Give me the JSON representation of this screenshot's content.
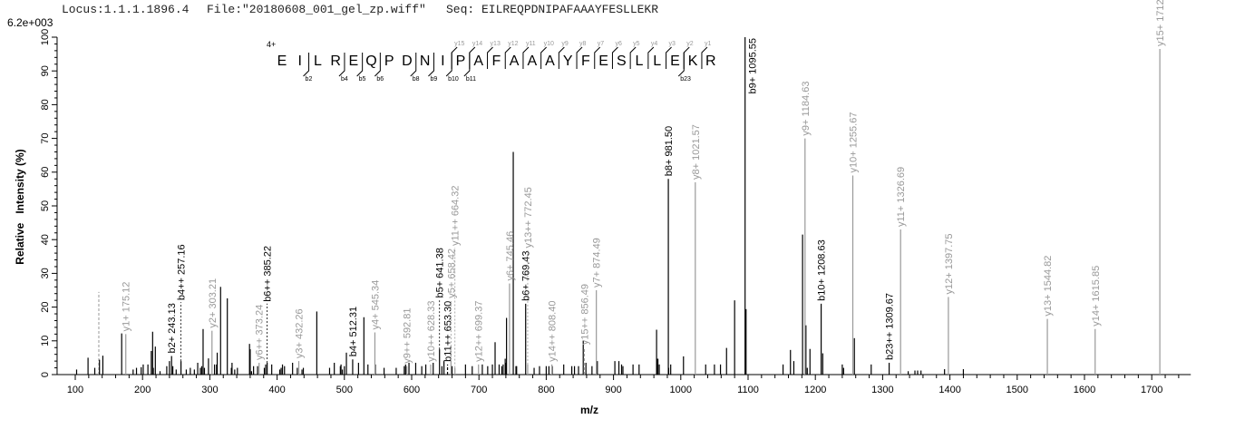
{
  "header": {
    "locus": "Locus:1.1.1.1896.4",
    "file": "File:\"20180608_001_gel_zp.wiff\"",
    "seq": "Seq: EILREQPDNIPAFAAAYFESLLEKR",
    "scale": "6.2e+003"
  },
  "chart_data": {
    "type": "bar",
    "subtype": "mass spectrum (stick)",
    "xlabel": "m/z",
    "ylabel": "Relative   Intensity (%)",
    "xlim": [
      73,
      1758
    ],
    "ylim": [
      0,
      100
    ],
    "xticks": [
      100,
      200,
      300,
      400,
      500,
      600,
      700,
      800,
      900,
      1000,
      1100,
      1200,
      1300,
      1400,
      1500,
      1600,
      1700
    ],
    "yticks": [
      0,
      10,
      20,
      30,
      40,
      50,
      60,
      70,
      80,
      90,
      100
    ],
    "grid": false,
    "colors": {
      "b_ion": "#000000",
      "y_ion": "#999999",
      "unassigned": "#000000"
    },
    "sequence": {
      "peptide": "EILREQPDNIPAFAAAYFESLLEKR",
      "charge": "4+",
      "b_ions": [
        2,
        4,
        5,
        6,
        8,
        9,
        10,
        11,
        23
      ],
      "y_ions": [
        15,
        14,
        13,
        12,
        11,
        10,
        9,
        8,
        7,
        6,
        5,
        4,
        3,
        2,
        1
      ]
    },
    "annotated_peaks": [
      {
        "mz": 175.12,
        "intensity": 12,
        "label": "y1+ 175.12",
        "type": "y"
      },
      {
        "mz": 243.13,
        "intensity": 5.5,
        "label": "b2+ 243.13",
        "type": "b"
      },
      {
        "mz": 257.16,
        "intensity": 4,
        "label": "b4++ 257.16",
        "type": "b"
      },
      {
        "mz": 303.21,
        "intensity": 13,
        "label": "y2+ 303.21",
        "type": "y"
      },
      {
        "mz": 373.24,
        "intensity": 3.5,
        "label": "y6++ 373.24",
        "type": "y"
      },
      {
        "mz": 385.22,
        "intensity": 3.5,
        "label": "b6++ 385.22",
        "type": "b"
      },
      {
        "mz": 432.26,
        "intensity": 4,
        "label": "y3+ 432.26",
        "type": "y"
      },
      {
        "mz": 512.31,
        "intensity": 4.5,
        "label": "b4+ 512.31",
        "type": "b"
      },
      {
        "mz": 545.34,
        "intensity": 12.5,
        "label": "y4+ 545.34",
        "type": "y"
      },
      {
        "mz": 592.81,
        "intensity": 2.5,
        "label": "y9++ 592.81",
        "type": "y"
      },
      {
        "mz": 628.33,
        "intensity": 3,
        "label": "y10++ 628.33",
        "type": "y"
      },
      {
        "mz": 641.38,
        "intensity": 7.5,
        "label": "b5+ 641.38",
        "type": "b"
      },
      {
        "mz": 653.3,
        "intensity": 3,
        "label": "b11++ 653.30",
        "type": "b",
        "dashed": true
      },
      {
        "mz": 658.42,
        "intensity": 4,
        "label": "y5+ 658.42",
        "type": "y"
      },
      {
        "mz": 664.32,
        "intensity": 2,
        "label": "y11++ 664.32",
        "type": "y"
      },
      {
        "mz": 699.37,
        "intensity": 3,
        "label": "y12++ 699.37",
        "type": "y"
      },
      {
        "mz": 745.46,
        "intensity": 27,
        "label": "y6+ 745.46",
        "type": "y"
      },
      {
        "mz": 769.43,
        "intensity": 21,
        "label": "b6+ 769.43",
        "type": "b"
      },
      {
        "mz": 772.45,
        "intensity": 3,
        "label": "y13++ 772.45",
        "type": "y"
      },
      {
        "mz": 808.4,
        "intensity": 3,
        "label": "y14++ 808.40",
        "type": "y"
      },
      {
        "mz": 856.49,
        "intensity": 8,
        "label": "y15++ 856.49",
        "type": "y",
        "dashed": true
      },
      {
        "mz": 874.49,
        "intensity": 25,
        "label": "y7+ 874.49",
        "type": "y"
      },
      {
        "mz": 981.5,
        "intensity": 58,
        "label": "b8+ 981.50",
        "type": "b"
      },
      {
        "mz": 1021.57,
        "intensity": 57,
        "label": "y8+ 1021.57",
        "type": "y"
      },
      {
        "mz": 1095.55,
        "intensity": 100,
        "label": "b9+ 1095.55",
        "type": "b"
      },
      {
        "mz": 1184.63,
        "intensity": 70,
        "label": "y9+ 1184.63",
        "type": "y"
      },
      {
        "mz": 1208.63,
        "intensity": 21,
        "label": "b10+ 1208.63",
        "type": "b"
      },
      {
        "mz": 1255.67,
        "intensity": 59,
        "label": "y10+ 1255.67",
        "type": "y"
      },
      {
        "mz": 1309.67,
        "intensity": 3.5,
        "label": "b23++ 1309.67",
        "type": "b"
      },
      {
        "mz": 1326.69,
        "intensity": 43,
        "label": "y11+ 1326.69",
        "type": "y"
      },
      {
        "mz": 1397.75,
        "intensity": 23,
        "label": "y12+ 1397.75",
        "type": "y"
      },
      {
        "mz": 1544.82,
        "intensity": 16.5,
        "label": "y13+ 1544.82",
        "type": "y"
      },
      {
        "mz": 1615.85,
        "intensity": 13.5,
        "label": "y14+ 1615.85",
        "type": "y"
      },
      {
        "mz": 1712.0,
        "intensity": 96.5,
        "label": "y15+ 1712.",
        "type": "y"
      }
    ],
    "unassigned_peaks": [
      [
        102,
        1.5
      ],
      [
        119,
        5
      ],
      [
        129,
        2
      ],
      [
        135,
        24.5,
        "dashed"
      ],
      [
        136,
        4.4
      ],
      [
        141,
        5.6
      ],
      [
        169,
        12.2
      ],
      [
        186,
        1.5
      ],
      [
        191,
        2
      ],
      [
        198,
        2.2
      ],
      [
        201,
        3
      ],
      [
        208,
        3
      ],
      [
        213,
        7
      ],
      [
        215,
        12.7
      ],
      [
        216,
        2
      ],
      [
        219,
        8.3
      ],
      [
        226,
        1
      ],
      [
        236,
        2.5
      ],
      [
        240,
        4
      ],
      [
        245,
        2.5
      ],
      [
        250,
        1.5
      ],
      [
        265,
        1.5
      ],
      [
        271,
        2
      ],
      [
        277,
        1.5
      ],
      [
        282,
        3.5
      ],
      [
        286,
        2
      ],
      [
        288,
        2.5
      ],
      [
        290,
        13.5
      ],
      [
        292,
        2
      ],
      [
        298,
        4.8
      ],
      [
        307,
        3
      ],
      [
        310,
        3
      ],
      [
        311,
        6.5
      ],
      [
        316,
        26
      ],
      [
        326,
        22.6
      ],
      [
        332,
        2
      ],
      [
        333,
        3.5
      ],
      [
        337,
        1.5
      ],
      [
        341,
        2
      ],
      [
        359,
        9.1
      ],
      [
        360,
        7.5
      ],
      [
        362,
        1
      ],
      [
        365,
        2.5
      ],
      [
        371,
        2.5
      ],
      [
        381,
        2
      ],
      [
        383,
        3
      ],
      [
        392,
        3
      ],
      [
        404,
        1.5
      ],
      [
        406,
        2
      ],
      [
        408,
        3
      ],
      [
        411,
        2.5
      ],
      [
        423,
        3.5
      ],
      [
        430,
        2
      ],
      [
        437,
        1.5
      ],
      [
        439,
        2
      ],
      [
        459,
        18.7
      ],
      [
        478,
        2
      ],
      [
        485,
        3.5
      ],
      [
        494,
        2.5
      ],
      [
        495,
        3
      ],
      [
        497,
        1.5
      ],
      [
        500,
        2.5
      ],
      [
        503,
        6.5
      ],
      [
        521,
        3.5
      ],
      [
        529,
        17
      ],
      [
        535,
        3
      ],
      [
        546,
        3
      ],
      [
        559,
        2
      ],
      [
        577,
        2
      ],
      [
        589,
        2.5
      ],
      [
        591,
        3
      ],
      [
        596,
        3.5
      ],
      [
        606,
        3.5
      ],
      [
        615,
        2.5
      ],
      [
        621,
        3
      ],
      [
        632,
        3.5
      ],
      [
        645,
        2.5
      ],
      [
        648,
        4
      ],
      [
        660,
        2.5
      ],
      [
        680,
        3
      ],
      [
        690,
        2.5
      ],
      [
        705,
        3
      ],
      [
        713,
        2.5
      ],
      [
        720,
        3
      ],
      [
        724,
        9.6
      ],
      [
        730,
        3
      ],
      [
        734,
        2.5
      ],
      [
        736,
        3
      ],
      [
        739,
        4.7
      ],
      [
        740,
        3.5
      ],
      [
        741,
        16.8
      ],
      [
        751,
        66
      ],
      [
        755,
        2.5
      ],
      [
        756,
        2.5
      ],
      [
        782,
        2
      ],
      [
        790,
        2.5
      ],
      [
        800,
        2.5
      ],
      [
        804,
        2.5
      ],
      [
        809,
        2.5
      ],
      [
        826,
        3
      ],
      [
        838,
        2.5
      ],
      [
        842,
        2.5
      ],
      [
        848,
        2.5
      ],
      [
        855,
        10
      ],
      [
        859,
        3.5
      ],
      [
        868,
        2.5
      ],
      [
        876,
        4
      ],
      [
        902,
        4
      ],
      [
        908,
        4
      ],
      [
        912,
        3
      ],
      [
        914,
        2.5
      ],
      [
        929,
        3
      ],
      [
        938,
        3
      ],
      [
        964,
        13.3
      ],
      [
        965,
        4.7
      ],
      [
        966,
        4.7
      ],
      [
        968,
        3
      ],
      [
        982,
        2
      ],
      [
        985,
        3
      ],
      [
        1004,
        5.4
      ],
      [
        1037,
        3
      ],
      [
        1050,
        3
      ],
      [
        1059,
        3
      ],
      [
        1068,
        7.9
      ],
      [
        1080,
        22
      ],
      [
        1097,
        19.4
      ],
      [
        1152,
        3
      ],
      [
        1163,
        7.3
      ],
      [
        1168,
        4
      ],
      [
        1181,
        41.5
      ],
      [
        1186,
        14.6
      ],
      [
        1188,
        2
      ],
      [
        1192,
        7.6
      ],
      [
        1211,
        6.3
      ],
      [
        1240,
        3
      ],
      [
        1242,
        2
      ],
      [
        1258,
        10.8
      ],
      [
        1283,
        3
      ],
      [
        1338,
        1
      ],
      [
        1348,
        1.2
      ],
      [
        1352,
        1.2
      ],
      [
        1357,
        1.2
      ],
      [
        1392,
        1.6
      ],
      [
        1420,
        1.6
      ]
    ]
  }
}
